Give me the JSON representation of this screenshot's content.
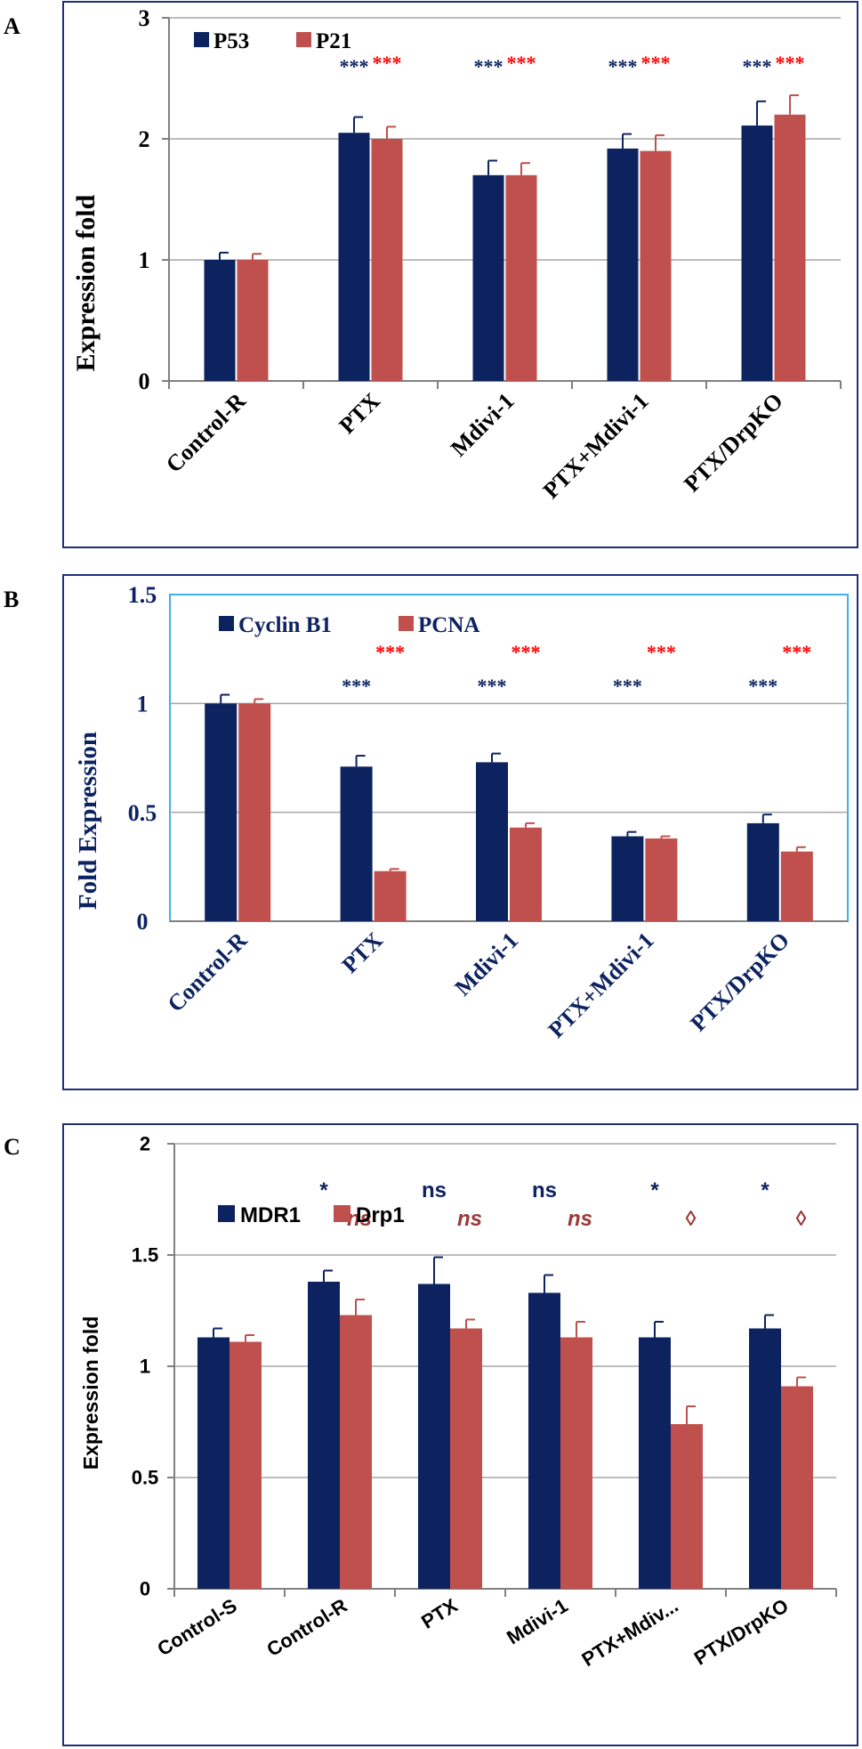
{
  "colors": {
    "navy": "#0d2360",
    "red": "#c0504d",
    "sig_red": "#ff0000",
    "ns_red": "#9b3a38",
    "grid": "#a6a6a6",
    "axis": "#808080",
    "frame": "#1f2f78",
    "plot_frame_b": "#3fb2e8",
    "label_b": "#0d2360"
  },
  "chart_data": [
    {
      "panel_letter": "A",
      "type": "bar",
      "categories": [
        "Control-R",
        "PTX",
        "Mdivi-1",
        "PTX+Mdivi-1",
        "PTX/DrpKO"
      ],
      "series": [
        {
          "name": "P53",
          "color": "#0d2360",
          "values": [
            1.0,
            2.05,
            1.7,
            1.92,
            2.11
          ],
          "errors": [
            0.06,
            0.13,
            0.12,
            0.12,
            0.2
          ]
        },
        {
          "name": "P21",
          "color": "#c0504d",
          "values": [
            1.0,
            2.0,
            1.7,
            1.9,
            2.2
          ],
          "errors": [
            0.05,
            0.1,
            0.1,
            0.13,
            0.16
          ]
        }
      ],
      "significance": [
        [
          "",
          "***",
          "***",
          "***",
          "***"
        ],
        [
          "",
          "***",
          "***",
          "***",
          "***"
        ]
      ],
      "ylabel": "Expression fold",
      "xlabel": "",
      "ylim": [
        0,
        3
      ],
      "yticks": [
        0,
        1,
        2,
        3
      ],
      "ytick_labels": [
        "0",
        "1",
        "2",
        "3"
      ],
      "legend_position": "top-left",
      "grid": true
    },
    {
      "panel_letter": "B",
      "type": "bar",
      "categories": [
        "Control-R",
        "PTX",
        "Mdivi-1",
        "PTX+Mdivi-1",
        "PTX/DrpKO"
      ],
      "series": [
        {
          "name": "Cyclin B1",
          "color": "#0d2360",
          "values": [
            1.0,
            0.71,
            0.73,
            0.39,
            0.45
          ],
          "errors": [
            0.04,
            0.05,
            0.04,
            0.02,
            0.04
          ]
        },
        {
          "name": "PCNA",
          "color": "#c0504d",
          "values": [
            1.0,
            0.23,
            0.43,
            0.38,
            0.32
          ],
          "errors": [
            0.02,
            0.01,
            0.02,
            0.01,
            0.02
          ]
        }
      ],
      "significance": [
        [
          "",
          "***",
          "***",
          "***",
          "***"
        ],
        [
          "",
          "***",
          "***",
          "***",
          "***"
        ]
      ],
      "ylabel": "Fold Expression",
      "xlabel": "",
      "ylim": [
        0,
        1.5
      ],
      "yticks": [
        0,
        0.5,
        1,
        1.5
      ],
      "ytick_labels": [
        "0",
        "0.5",
        "1",
        "1.5"
      ],
      "legend_position": "top-left",
      "grid": true
    },
    {
      "panel_letter": "C",
      "type": "bar",
      "categories": [
        "Control-S",
        "Control-R",
        "PTX",
        "Mdivi-1",
        "PTX+Mdiv...",
        "PTX/DrpKO"
      ],
      "series": [
        {
          "name": "MDR1",
          "color": "#0d2360",
          "values": [
            1.13,
            1.38,
            1.37,
            1.33,
            1.13,
            1.17
          ],
          "errors": [
            0.04,
            0.05,
            0.12,
            0.08,
            0.07,
            0.06
          ]
        },
        {
          "name": "Drp1",
          "color": "#c0504d",
          "values": [
            1.11,
            1.23,
            1.17,
            1.13,
            0.74,
            0.91
          ],
          "errors": [
            0.03,
            0.07,
            0.04,
            0.07,
            0.08,
            0.04
          ]
        }
      ],
      "significance": [
        [
          "",
          "*",
          "ns",
          "ns",
          "*",
          "*"
        ],
        [
          "",
          "ns",
          "ns",
          "ns",
          "◊",
          "◊"
        ]
      ],
      "ylabel": "Expression fold",
      "xlabel": "",
      "ylim": [
        0,
        2
      ],
      "yticks": [
        0,
        0.5,
        1,
        1.5,
        2
      ],
      "ytick_labels": [
        "0",
        "0.5",
        "1",
        "1.5",
        "2"
      ],
      "legend_position": "top-left",
      "grid": true
    }
  ]
}
